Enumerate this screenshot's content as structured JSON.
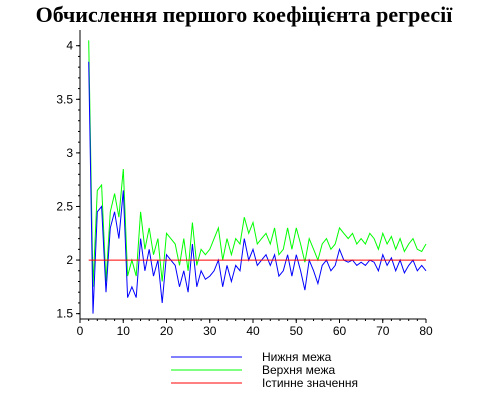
{
  "chart_data": {
    "type": "line",
    "title": "Обчислення першого коефіцієнта регресії",
    "xlabel": "",
    "ylabel": "",
    "xlim": [
      0,
      80
    ],
    "ylim": [
      1.45,
      4.1
    ],
    "x_ticks": [
      0,
      10,
      20,
      30,
      40,
      50,
      60,
      70,
      80
    ],
    "y_ticks": [
      1.5,
      2,
      2.5,
      3,
      3.5,
      4
    ],
    "y_tick_labels": [
      "1.5",
      "2",
      "2.5",
      "3",
      "3.5",
      "4"
    ],
    "x_tick_labels": [
      "0",
      "10",
      "20",
      "30",
      "40",
      "50",
      "60",
      "70",
      "80"
    ],
    "grid": false,
    "legend_position": "bottom",
    "x": [
      2,
      3,
      4,
      5,
      6,
      7,
      8,
      9,
      10,
      11,
      12,
      13,
      14,
      15,
      16,
      17,
      18,
      19,
      20,
      21,
      22,
      23,
      24,
      25,
      26,
      27,
      28,
      29,
      30,
      31,
      32,
      33,
      34,
      35,
      36,
      37,
      38,
      39,
      40,
      41,
      42,
      43,
      44,
      45,
      46,
      47,
      48,
      49,
      50,
      51,
      52,
      53,
      54,
      55,
      56,
      57,
      58,
      59,
      60,
      61,
      62,
      63,
      64,
      65,
      66,
      67,
      68,
      69,
      70,
      71,
      72,
      73,
      74,
      75,
      76,
      77,
      78,
      79,
      80
    ],
    "series": [
      {
        "name": "Нижня межа",
        "color": "#0000ff",
        "values": [
          3.85,
          1.5,
          2.45,
          2.5,
          1.7,
          2.3,
          2.45,
          2.2,
          2.65,
          1.65,
          1.75,
          1.65,
          2.2,
          1.9,
          2.1,
          1.85,
          2.0,
          1.6,
          2.05,
          2.0,
          1.95,
          1.75,
          1.9,
          1.7,
          2.15,
          1.75,
          1.9,
          1.82,
          1.85,
          1.9,
          2.0,
          1.75,
          1.95,
          1.8,
          1.95,
          1.9,
          2.2,
          2.0,
          2.1,
          1.95,
          2.0,
          2.05,
          1.95,
          2.05,
          1.85,
          1.9,
          2.05,
          1.85,
          2.05,
          1.9,
          1.72,
          2.0,
          1.9,
          1.78,
          1.95,
          2.0,
          1.9,
          1.95,
          2.1,
          2.0,
          1.98,
          2.0,
          1.95,
          1.98,
          1.95,
          2.0,
          1.98,
          1.9,
          2.05,
          1.95,
          2.02,
          1.9,
          2.0,
          1.88,
          1.95,
          2.0,
          1.9,
          1.95,
          1.9
        ]
      },
      {
        "name": "Верхня межа",
        "color": "#00ff00",
        "values": [
          4.05,
          1.75,
          2.65,
          2.7,
          1.8,
          2.45,
          2.62,
          2.4,
          2.85,
          1.85,
          2.0,
          1.85,
          2.45,
          2.1,
          2.3,
          2.05,
          2.2,
          1.8,
          2.25,
          2.2,
          2.15,
          1.95,
          2.2,
          1.9,
          2.35,
          1.95,
          2.1,
          2.05,
          2.1,
          2.2,
          2.3,
          2.0,
          2.2,
          2.05,
          2.2,
          2.15,
          2.4,
          2.25,
          2.35,
          2.15,
          2.2,
          2.25,
          2.15,
          2.3,
          2.05,
          2.1,
          2.3,
          2.1,
          2.3,
          2.15,
          1.98,
          2.2,
          2.1,
          2.0,
          2.15,
          2.2,
          2.1,
          2.15,
          2.3,
          2.25,
          2.2,
          2.25,
          2.15,
          2.2,
          2.15,
          2.25,
          2.2,
          2.1,
          2.25,
          2.15,
          2.22,
          2.1,
          2.2,
          2.08,
          2.15,
          2.2,
          2.1,
          2.08,
          2.15
        ]
      },
      {
        "name": "Істинне значення",
        "color": "#ff0000",
        "values": [
          2,
          2,
          2,
          2,
          2,
          2,
          2,
          2,
          2,
          2,
          2,
          2,
          2,
          2,
          2,
          2,
          2,
          2,
          2,
          2,
          2,
          2,
          2,
          2,
          2,
          2,
          2,
          2,
          2,
          2,
          2,
          2,
          2,
          2,
          2,
          2,
          2,
          2,
          2,
          2,
          2,
          2,
          2,
          2,
          2,
          2,
          2,
          2,
          2,
          2,
          2,
          2,
          2,
          2,
          2,
          2,
          2,
          2,
          2,
          2,
          2,
          2,
          2,
          2,
          2,
          2,
          2,
          2,
          2,
          2,
          2,
          2,
          2,
          2,
          2,
          2,
          2,
          2,
          2
        ]
      }
    ]
  }
}
